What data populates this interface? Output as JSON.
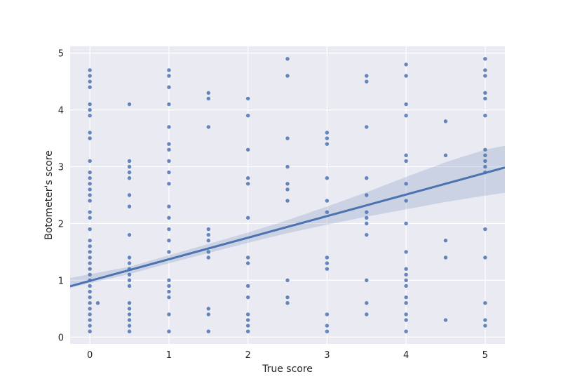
{
  "chart_data": {
    "type": "scatter",
    "title": "",
    "xlabel": "True score",
    "ylabel": "Botometer's score",
    "xlim": [
      -0.25,
      5.25
    ],
    "ylim": [
      -0.12,
      5.12
    ],
    "xticks": [
      0,
      1,
      2,
      3,
      4,
      5
    ],
    "yticks": [
      0,
      1,
      2,
      3,
      4,
      5
    ],
    "grid": true,
    "colors": {
      "background": "#EAEAF2",
      "grid": "#FFFFFF",
      "points": "#4C72B0",
      "line": "#4C72B0",
      "band": "#4C72B0"
    },
    "points": [
      [
        0,
        4.7
      ],
      [
        0,
        4.6
      ],
      [
        0,
        4.5
      ],
      [
        0,
        4.4
      ],
      [
        0,
        4.1
      ],
      [
        0,
        4.0
      ],
      [
        0,
        3.9
      ],
      [
        0,
        3.6
      ],
      [
        0,
        3.5
      ],
      [
        0,
        3.1
      ],
      [
        0,
        2.9
      ],
      [
        0,
        2.8
      ],
      [
        0,
        2.7
      ],
      [
        0,
        2.6
      ],
      [
        0,
        2.5
      ],
      [
        0,
        2.4
      ],
      [
        0,
        2.2
      ],
      [
        0,
        2.1
      ],
      [
        0,
        1.9
      ],
      [
        0,
        1.7
      ],
      [
        0,
        1.6
      ],
      [
        0,
        1.5
      ],
      [
        0,
        1.4
      ],
      [
        0,
        1.3
      ],
      [
        0,
        1.2
      ],
      [
        0,
        1.1
      ],
      [
        0,
        1.0
      ],
      [
        0,
        0.9
      ],
      [
        0,
        0.8
      ],
      [
        0,
        0.7
      ],
      [
        0,
        0.6
      ],
      [
        0,
        0.5
      ],
      [
        0,
        0.4
      ],
      [
        0,
        0.3
      ],
      [
        0,
        0.2
      ],
      [
        0,
        0.1
      ],
      [
        0.1,
        0.6
      ],
      [
        0.5,
        4.1
      ],
      [
        0.5,
        3.1
      ],
      [
        0.5,
        3.0
      ],
      [
        0.5,
        2.9
      ],
      [
        0.5,
        2.8
      ],
      [
        0.5,
        2.5
      ],
      [
        0.5,
        2.3
      ],
      [
        0.5,
        1.8
      ],
      [
        0.5,
        1.4
      ],
      [
        0.5,
        1.3
      ],
      [
        0.5,
        1.2
      ],
      [
        0.5,
        1.1
      ],
      [
        0.5,
        1.0
      ],
      [
        0.5,
        0.9
      ],
      [
        0.5,
        0.6
      ],
      [
        0.5,
        0.5
      ],
      [
        0.5,
        0.4
      ],
      [
        0.5,
        0.3
      ],
      [
        0.5,
        0.2
      ],
      [
        0.5,
        0.1
      ],
      [
        1,
        4.7
      ],
      [
        1,
        4.6
      ],
      [
        1,
        4.4
      ],
      [
        1,
        4.1
      ],
      [
        1,
        3.7
      ],
      [
        1,
        3.4
      ],
      [
        1,
        3.3
      ],
      [
        1,
        3.1
      ],
      [
        1,
        2.9
      ],
      [
        1,
        2.7
      ],
      [
        1,
        2.3
      ],
      [
        1,
        2.1
      ],
      [
        1,
        1.9
      ],
      [
        1,
        1.7
      ],
      [
        1,
        1.5
      ],
      [
        1,
        1.0
      ],
      [
        1,
        0.9
      ],
      [
        1,
        0.8
      ],
      [
        1,
        0.7
      ],
      [
        1,
        0.4
      ],
      [
        1,
        0.1
      ],
      [
        1.5,
        4.3
      ],
      [
        1.5,
        4.2
      ],
      [
        1.5,
        3.7
      ],
      [
        1.5,
        1.9
      ],
      [
        1.5,
        1.8
      ],
      [
        1.5,
        1.7
      ],
      [
        1.5,
        1.5
      ],
      [
        1.5,
        1.4
      ],
      [
        1.5,
        0.5
      ],
      [
        1.5,
        0.4
      ],
      [
        1.5,
        0.1
      ],
      [
        2,
        4.2
      ],
      [
        2,
        3.9
      ],
      [
        2,
        3.3
      ],
      [
        2,
        2.8
      ],
      [
        2,
        2.7
      ],
      [
        2,
        2.1
      ],
      [
        2,
        1.4
      ],
      [
        2,
        1.3
      ],
      [
        2,
        0.9
      ],
      [
        2,
        0.7
      ],
      [
        2,
        0.4
      ],
      [
        2,
        0.3
      ],
      [
        2,
        0.2
      ],
      [
        2,
        0.1
      ],
      [
        2.5,
        4.9
      ],
      [
        2.5,
        4.6
      ],
      [
        2.5,
        3.5
      ],
      [
        2.5,
        3.0
      ],
      [
        2.5,
        2.7
      ],
      [
        2.5,
        2.6
      ],
      [
        2.5,
        2.4
      ],
      [
        2.5,
        1.0
      ],
      [
        2.5,
        0.7
      ],
      [
        2.5,
        0.6
      ],
      [
        3,
        3.6
      ],
      [
        3,
        3.5
      ],
      [
        3,
        3.4
      ],
      [
        3,
        2.8
      ],
      [
        3,
        2.4
      ],
      [
        3,
        2.2
      ],
      [
        3,
        1.4
      ],
      [
        3,
        1.3
      ],
      [
        3,
        1.2
      ],
      [
        3,
        0.4
      ],
      [
        3,
        0.2
      ],
      [
        3,
        0.1
      ],
      [
        3.5,
        4.6
      ],
      [
        3.5,
        4.5
      ],
      [
        3.5,
        3.7
      ],
      [
        3.5,
        2.8
      ],
      [
        3.5,
        2.5
      ],
      [
        3.5,
        2.2
      ],
      [
        3.5,
        2.1
      ],
      [
        3.5,
        2.0
      ],
      [
        3.5,
        1.8
      ],
      [
        3.5,
        1.0
      ],
      [
        3.5,
        0.6
      ],
      [
        3.5,
        0.4
      ],
      [
        4,
        4.8
      ],
      [
        4,
        4.6
      ],
      [
        4,
        4.1
      ],
      [
        4,
        3.9
      ],
      [
        4,
        3.2
      ],
      [
        4,
        3.1
      ],
      [
        4,
        2.7
      ],
      [
        4,
        2.4
      ],
      [
        4,
        2.0
      ],
      [
        4,
        1.5
      ],
      [
        4,
        1.2
      ],
      [
        4,
        1.1
      ],
      [
        4,
        1.0
      ],
      [
        4,
        0.9
      ],
      [
        4,
        0.7
      ],
      [
        4,
        0.6
      ],
      [
        4,
        0.4
      ],
      [
        4,
        0.3
      ],
      [
        4,
        0.1
      ],
      [
        4.5,
        3.8
      ],
      [
        4.5,
        3.2
      ],
      [
        4.5,
        1.7
      ],
      [
        4.5,
        1.4
      ],
      [
        4.5,
        0.3
      ],
      [
        5,
        4.9
      ],
      [
        5,
        4.7
      ],
      [
        5,
        4.6
      ],
      [
        5,
        4.3
      ],
      [
        5,
        4.2
      ],
      [
        5,
        3.9
      ],
      [
        5,
        3.3
      ],
      [
        5,
        3.2
      ],
      [
        5,
        3.1
      ],
      [
        5,
        3.0
      ],
      [
        5,
        2.9
      ],
      [
        5,
        1.9
      ],
      [
        5,
        1.4
      ],
      [
        5,
        0.6
      ],
      [
        5,
        0.3
      ],
      [
        5,
        0.2
      ]
    ],
    "regression": {
      "intercept": 0.99,
      "slope": 0.38
    },
    "confidence_band": [
      [
        -0.25,
        0.87,
        1.04
      ],
      [
        0.5,
        1.11,
        1.24
      ],
      [
        1.0,
        1.3,
        1.44
      ],
      [
        1.5,
        1.48,
        1.64
      ],
      [
        2.0,
        1.66,
        1.84
      ],
      [
        2.5,
        1.83,
        2.06
      ],
      [
        3.0,
        1.98,
        2.3
      ],
      [
        3.5,
        2.12,
        2.55
      ],
      [
        4.0,
        2.25,
        2.82
      ],
      [
        4.5,
        2.38,
        3.08
      ],
      [
        5.0,
        2.49,
        3.3
      ],
      [
        5.25,
        2.54,
        3.37
      ]
    ]
  }
}
